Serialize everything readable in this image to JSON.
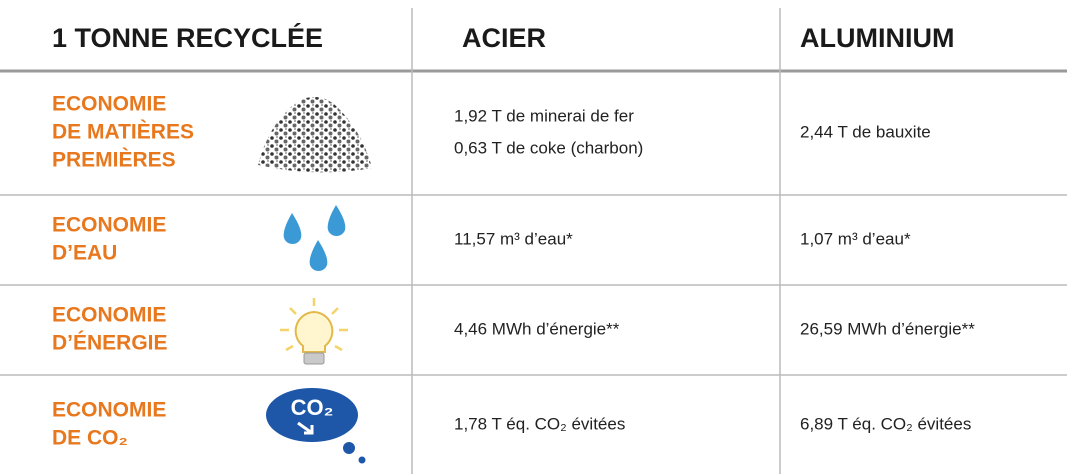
{
  "table": {
    "header": [
      "1 TONNE RECYCLÉE",
      "ACIER",
      "ALUMINIUM"
    ],
    "rows": [
      {
        "label": [
          "ECONOMIE",
          "DE MATIÈRES",
          "PREMIÈRES"
        ],
        "acier": [
          "1,92 T de minerai de fer",
          "0,63 T de coke (charbon)"
        ],
        "aluminium": [
          "2,44 T de bauxite"
        ]
      },
      {
        "label": [
          "ECONOMIE",
          "D’EAU"
        ],
        "acier": [
          "11,57 m³ d’eau*"
        ],
        "aluminium": [
          "1,07 m³ d’eau*"
        ]
      },
      {
        "label": [
          "ECONOMIE",
          "D’ÉNERGIE"
        ],
        "acier": [
          "4,46 MWh d’énergie**"
        ],
        "aluminium": [
          "26,59 MWh d’énergie**"
        ]
      },
      {
        "label": [
          "ECONOMIE",
          "DE CO₂"
        ],
        "acier": [
          "1,78 T éq. CO₂ évitées"
        ],
        "aluminium": [
          "6,89 T éq. CO₂ évitées"
        ],
        "icon_text": "CO₂"
      }
    ]
  }
}
